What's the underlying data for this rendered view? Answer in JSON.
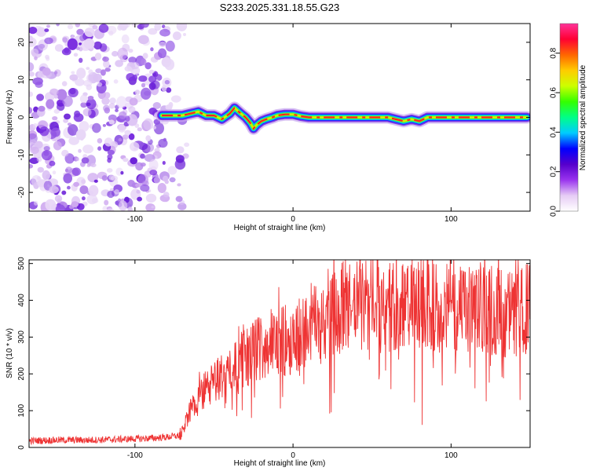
{
  "title": "S233.2025.331.18.55.G23",
  "chart_data": [
    {
      "type": "heatmap",
      "name": "spectrogram",
      "xlabel": "Height of straight line (km)",
      "ylabel": "Frequency (Hz)",
      "xlim": [
        -167,
        150
      ],
      "ylim": [
        -25,
        25
      ],
      "xticks": [
        -100,
        0,
        100
      ],
      "yticks": [
        -20,
        -10,
        0,
        10,
        20
      ],
      "colorbar": {
        "label": "Normalized spectral amplitude",
        "range": [
          0,
          0.95
        ],
        "ticks": [
          "0.0",
          "0.2",
          "0.4",
          "0.6",
          "0.8"
        ],
        "colors": [
          "#ffffff",
          "#e6ccf5",
          "#9933ee",
          "#5500cc",
          "#0000ff",
          "#00ccff",
          "#00ff88",
          "#33ff00",
          "#ccff00",
          "#ffcc00",
          "#ff6600",
          "#ff0033",
          "#ff3399"
        ]
      },
      "noise_region_x": [
        -167,
        -72
      ],
      "signal_start_x": -83,
      "signal_freq_trace": {
        "x": [
          -83,
          -70,
          -60,
          -55,
          -50,
          -45,
          -40,
          -37,
          -33,
          -30,
          -27,
          -25,
          -23,
          -20,
          -17,
          -13,
          -10,
          -5,
          0,
          5,
          10,
          20,
          40,
          60,
          65,
          70,
          75,
          80,
          85,
          90,
          100,
          110,
          120,
          130,
          148
        ],
        "y": [
          0.5,
          0.5,
          1.5,
          0.5,
          0.5,
          -0.5,
          1.0,
          2.5,
          1.0,
          0.0,
          -1.5,
          -3.0,
          -2.0,
          -1.0,
          -0.5,
          0.0,
          0.5,
          0.8,
          0.8,
          0.3,
          0.0,
          0.0,
          0.0,
          0.0,
          -0.5,
          -1.0,
          -0.5,
          -1.0,
          0.0,
          0.0,
          0.0,
          0.0,
          0.0,
          0.0,
          0.0
        ]
      }
    },
    {
      "type": "line",
      "name": "snr",
      "xlabel": "Height of straight line (km)",
      "ylabel": "SNR (10 * v/v)",
      "xlim": [
        -167,
        150
      ],
      "ylim": [
        0,
        510
      ],
      "xticks": [
        -100,
        0,
        100
      ],
      "yticks": [
        0,
        100,
        200,
        300,
        400,
        500
      ],
      "color": "#ee3333",
      "series": [
        {
          "name": "SNR",
          "x": [
            -167,
            -150,
            -130,
            -110,
            -90,
            -80,
            -72,
            -70,
            -66,
            -60,
            -55,
            -50,
            -45,
            -40,
            -35,
            -30,
            -25,
            -20,
            -15,
            -10,
            -5,
            0,
            5,
            10,
            15,
            20,
            25,
            30,
            35,
            40,
            50,
            60,
            70,
            80,
            90,
            100,
            110,
            120,
            130,
            140,
            150
          ],
          "values": [
            18,
            20,
            20,
            22,
            25,
            28,
            32,
            45,
            95,
            130,
            160,
            175,
            195,
            210,
            230,
            245,
            260,
            275,
            280,
            285,
            290,
            300,
            310,
            325,
            335,
            345,
            360,
            375,
            380,
            385,
            390,
            380,
            385,
            390,
            380,
            375,
            370,
            380,
            370,
            360,
            380
          ]
        }
      ]
    }
  ]
}
